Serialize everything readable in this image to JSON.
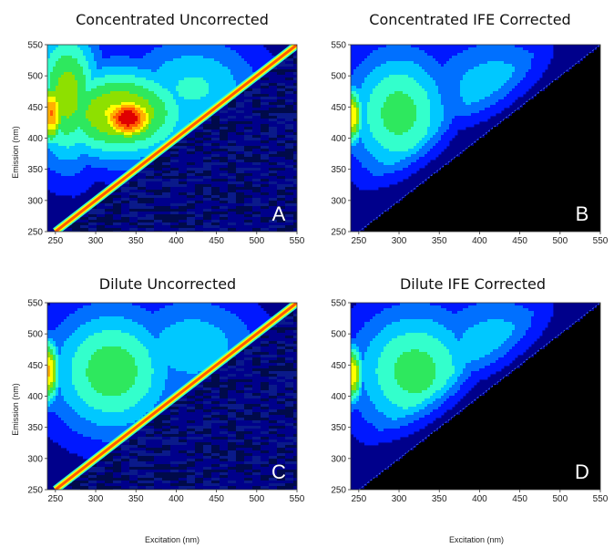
{
  "chart_data": [
    {
      "type": "heatmap",
      "title": "Concentrated Uncorrected",
      "panel_letter": "A",
      "xlabel": "",
      "ylabel": "Emission (nm)",
      "xlim": [
        240,
        550
      ],
      "ylim": [
        250,
        550
      ],
      "x_ticks": [
        250,
        300,
        350,
        400,
        450,
        500,
        550
      ],
      "y_ticks": [
        250,
        300,
        350,
        400,
        450,
        500,
        550
      ],
      "ife_corrected": false,
      "peaks": [
        {
          "excitation": 245,
          "emission": 440,
          "level": 0.82,
          "sx": 18,
          "sy": 55
        },
        {
          "excitation": 340,
          "emission": 432,
          "level": 1.0,
          "sx": 38,
          "sy": 38
        },
        {
          "excitation": 330,
          "emission": 440,
          "level": 0.66,
          "sx": 95,
          "sy": 80
        },
        {
          "excitation": 265,
          "emission": 470,
          "level": 0.6,
          "sx": 45,
          "sy": 120
        },
        {
          "excitation": 420,
          "emission": 480,
          "level": 0.38,
          "sx": 95,
          "sy": 90
        }
      ],
      "scatter_line": "excitation = emission"
    },
    {
      "type": "heatmap",
      "title": "Concentrated IFE Corrected",
      "panel_letter": "B",
      "xlabel": "",
      "ylabel": "",
      "xlim": [
        240,
        550
      ],
      "ylim": [
        250,
        550
      ],
      "x_ticks": [
        250,
        300,
        350,
        400,
        450,
        500,
        550
      ],
      "y_ticks": [
        250,
        300,
        350,
        400,
        450,
        500,
        550
      ],
      "ife_corrected": true,
      "peaks": [
        {
          "excitation": 242,
          "emission": 435,
          "level": 0.72,
          "sx": 14,
          "sy": 50
        },
        {
          "excitation": 300,
          "emission": 440,
          "level": 0.5,
          "sx": 70,
          "sy": 110
        },
        {
          "excitation": 420,
          "emission": 480,
          "level": 0.34,
          "sx": 95,
          "sy": 90
        }
      ],
      "scatter_line": "none"
    },
    {
      "type": "heatmap",
      "title": "Dilute Uncorrected",
      "panel_letter": "C",
      "xlabel": "Excitation (nm)",
      "ylabel": "Emission (nm)",
      "xlim": [
        240,
        550
      ],
      "ylim": [
        250,
        550
      ],
      "x_ticks": [
        250,
        300,
        350,
        400,
        450,
        500,
        550
      ],
      "y_ticks": [
        250,
        300,
        350,
        400,
        450,
        500,
        550
      ],
      "ife_corrected": false,
      "peaks": [
        {
          "excitation": 242,
          "emission": 440,
          "level": 0.74,
          "sx": 14,
          "sy": 55
        },
        {
          "excitation": 320,
          "emission": 440,
          "level": 0.52,
          "sx": 85,
          "sy": 110
        },
        {
          "excitation": 420,
          "emission": 480,
          "level": 0.34,
          "sx": 95,
          "sy": 90
        }
      ],
      "scatter_line": "excitation = emission"
    },
    {
      "type": "heatmap",
      "title": "Dilute IFE Corrected",
      "panel_letter": "D",
      "xlabel": "Excitation (nm)",
      "ylabel": "",
      "xlim": [
        240,
        550
      ],
      "ylim": [
        250,
        550
      ],
      "x_ticks": [
        250,
        300,
        350,
        400,
        450,
        500,
        550
      ],
      "y_ticks": [
        250,
        300,
        350,
        400,
        450,
        500,
        550
      ],
      "ife_corrected": true,
      "peaks": [
        {
          "excitation": 242,
          "emission": 435,
          "level": 0.72,
          "sx": 14,
          "sy": 50
        },
        {
          "excitation": 320,
          "emission": 440,
          "level": 0.5,
          "sx": 85,
          "sy": 110
        },
        {
          "excitation": 420,
          "emission": 480,
          "level": 0.34,
          "sx": 95,
          "sy": 90
        }
      ],
      "scatter_line": "none"
    }
  ],
  "colormap": [
    "#00008b",
    "#0018ff",
    "#0070ff",
    "#00c8ff",
    "#33ffcc",
    "#2ee85e",
    "#8ee000",
    "#ffff00",
    "#ffb000",
    "#ff5a00",
    "#e00000"
  ],
  "colors": {
    "masked_region": "#000000",
    "background_low": "#00008b"
  }
}
